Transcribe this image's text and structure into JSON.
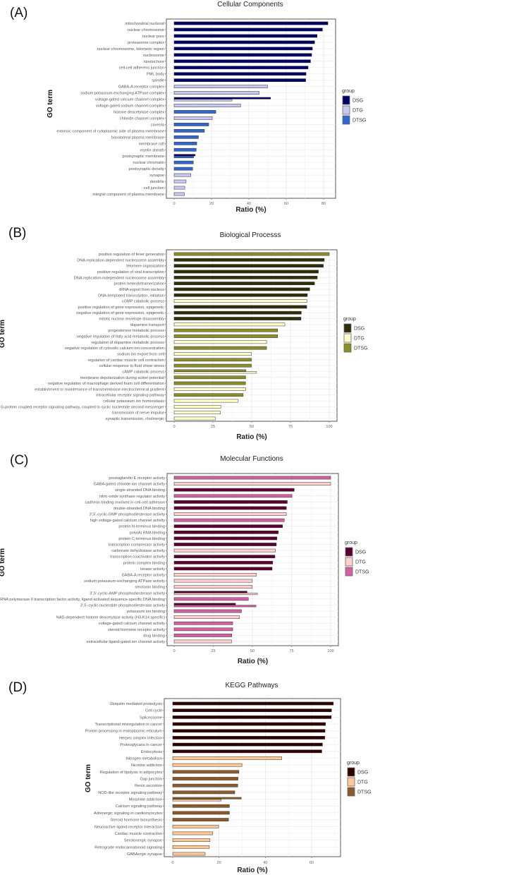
{
  "chart_data": [
    {
      "type": "bar",
      "orientation": "horizontal",
      "panel_label": "(A)",
      "title": "Cellular Components",
      "xlabel": "Ratio (%)",
      "ylabel": "GO term",
      "xlim": [
        0,
        85
      ],
      "xticks": [
        "0",
        "20",
        "40",
        "60",
        "80"
      ],
      "legend_title": "group",
      "legend_position": "right",
      "groups": [
        {
          "name": "DSG",
          "color": "#000066"
        },
        {
          "name": "DTG",
          "color": "#c8c8f0"
        },
        {
          "name": "DTSG",
          "color": "#3366cc"
        }
      ],
      "rows": [
        {
          "term": "mitochondrial nucleoid",
          "values": {
            "DSG": 82.3
          }
        },
        {
          "term": "nuclear chromosome",
          "values": {
            "DSG": 79.4
          }
        },
        {
          "term": "nuclear pore",
          "values": {
            "DSG": 76.5
          }
        },
        {
          "term": "proteasome complex",
          "values": {
            "DSG": 75.2
          }
        },
        {
          "term": "nuclear chromosome, telomeric region",
          "values": {
            "DSG": 74.0
          }
        },
        {
          "term": "nucleosome",
          "values": {
            "DSG": 73.6
          }
        },
        {
          "term": "kinetochore",
          "values": {
            "DSG": 73.0
          }
        },
        {
          "term": "cell-cell adherens junction",
          "values": {
            "DSG": 71.7
          }
        },
        {
          "term": "PML body",
          "values": {
            "DSG": 70.6
          }
        },
        {
          "term": "spindle",
          "values": {
            "DSG": 70.4
          }
        },
        {
          "term": "GABA-A receptor complex",
          "values": {
            "DTG": 50.0
          }
        },
        {
          "term": "sodium:potassium-exchanging ATPase complex",
          "values": {
            "DTG": 45.5
          }
        },
        {
          "term": "voltage-gated calcium channel complex",
          "values": {
            "DSG": 51.6,
            "DTG": 31.0
          }
        },
        {
          "term": "voltage-gated sodium channel complex",
          "values": {
            "DTG": 35.6
          }
        },
        {
          "term": "histone deacetylase complex",
          "values": {
            "DTSG": 22.3
          }
        },
        {
          "term": "chloride channel complex",
          "values": {
            "DTG": 20.4
          }
        },
        {
          "term": "caveola",
          "values": {
            "DTSG": 18.5
          }
        },
        {
          "term": "extrinsic component of cytoplasmic side of plasma membrane",
          "values": {
            "DTSG": 16.2
          }
        },
        {
          "term": "basolateral plasma membrane",
          "values": {
            "DTSG": 13.0
          }
        },
        {
          "term": "membrane raft",
          "values": {
            "DTSG": 12.1
          }
        },
        {
          "term": "myelin sheath",
          "values": {
            "DTSG": 11.8
          }
        },
        {
          "term": "postsynaptic membrane",
          "values": {
            "DSG": 11.3,
            "DTSG": 10.4
          }
        },
        {
          "term": "nuclear chromatin",
          "values": {
            "DTSG": 10.3
          }
        },
        {
          "term": "postsynaptic density",
          "values": {
            "DTSG": 9.9
          }
        },
        {
          "term": "synapse",
          "values": {
            "DTG": 8.9
          }
        },
        {
          "term": "dendrite",
          "values": {
            "DTG": 6.4
          }
        },
        {
          "term": "cell junction",
          "values": {
            "DTG": 5.7
          }
        },
        {
          "term": "integral component of plasma membrane",
          "values": {
            "DTG": 5.5
          }
        }
      ]
    },
    {
      "type": "bar",
      "orientation": "horizontal",
      "panel_label": "(B)",
      "title": "Biological Processs",
      "xlabel": "Ratio (%)",
      "ylabel": "GO term",
      "xlim": [
        0,
        105
      ],
      "xticks": [
        "0",
        "25",
        "50",
        "75",
        "100"
      ],
      "legend_title": "group",
      "legend_position": "right",
      "groups": [
        {
          "name": "DSG",
          "color": "#2e2e08"
        },
        {
          "name": "DTG",
          "color": "#ffffcc"
        },
        {
          "name": "DTSG",
          "color": "#8c8c2a"
        }
      ],
      "rows": [
        {
          "term": "positive regulation of fever generation",
          "values": {
            "DTSG": 100
          }
        },
        {
          "term": "DNA replication-dependent nucleosome assembly",
          "values": {
            "DSG": 96.8
          }
        },
        {
          "term": "telomere organization",
          "values": {
            "DSG": 96.2
          }
        },
        {
          "term": "positive regulation of viral transcription",
          "values": {
            "DSG": 93.0
          }
        },
        {
          "term": "DNA replication-independent nucleosome assembly",
          "values": {
            "DSG": 92.3
          }
        },
        {
          "term": "protein heterotetramerization",
          "values": {
            "DSG": 90.5
          }
        },
        {
          "term": "tRNA export from nucleus",
          "values": {
            "DSG": 87.4
          }
        },
        {
          "term": "DNA-templated transcription, initiation",
          "values": {
            "DSG": 85.9
          }
        },
        {
          "term": "cGMP catabolic process",
          "values": {
            "DTG": 85.6
          }
        },
        {
          "term": "positive regulation of gene expression, epigenetic",
          "values": {
            "DSG": 85.5
          }
        },
        {
          "term": "negative regulation of gene expression, epigenetic",
          "values": {
            "DSG": 82.0
          }
        },
        {
          "term": "mitotic nuclear envelope disassembly",
          "values": {
            "DSG": 81.8
          }
        },
        {
          "term": "dopamine transport",
          "values": {
            "DTG": 71.4
          }
        },
        {
          "term": "progesterone metabolic process",
          "values": {
            "DTSG": 66.7
          }
        },
        {
          "term": "negative regulation of fatty acid metabolic process",
          "values": {
            "DTSG": 66.7
          }
        },
        {
          "term": "regulation of dopamine metabolic process",
          "values": {
            "DTG": 59.6
          }
        },
        {
          "term": "negative regulation of cytosolic calcium ion concentration",
          "values": {
            "DTSG": 59.6
          }
        },
        {
          "term": "sodium ion export from cell",
          "values": {
            "DTG": 49.8
          }
        },
        {
          "term": "regulation of cardiac muscle cell contraction",
          "values": {
            "DTSG": 49.8
          }
        },
        {
          "term": "cellular response to fluid shear stress",
          "values": {
            "DTSG": 49.8
          }
        },
        {
          "term": "cAMP catabolic process",
          "values": {
            "DTSG": 46.3,
            "DTG": 53.1
          }
        },
        {
          "term": "membrane depolarization during action potential",
          "values": {
            "DTSG": 46.1
          }
        },
        {
          "term": "negative regulation of macrophage derived foam cell differentiation",
          "values": {
            "DTSG": 46.0
          }
        },
        {
          "term": "establishment or maintenance of transmembrane electrochemical gradient",
          "values": {
            "DTG": 46.1
          }
        },
        {
          "term": "intracellular receptor signaling pathway",
          "values": {
            "DTSG": 44.5
          }
        },
        {
          "term": "cellular potassium ion homeostasis",
          "values": {
            "DTG": 41.3
          }
        },
        {
          "term": "G-protein coupled receptor signaling pathway, coupled to cyclic nucleotide second messenger",
          "values": {
            "DTG": 30.1
          }
        },
        {
          "term": "transmission of nerve impulse",
          "values": {
            "DTG": 29.8
          }
        },
        {
          "term": "synaptic transmission, cholinergic",
          "values": {
            "DTG": 26.6
          }
        }
      ]
    },
    {
      "type": "bar",
      "orientation": "horizontal",
      "panel_label": "(C)",
      "title": "Molecular Functions",
      "xlabel": "Ratio (%)",
      "ylabel": "GO term",
      "xlim": [
        0,
        105
      ],
      "xticks": [
        "0",
        "25",
        "50",
        "75",
        "100"
      ],
      "legend_title": "group",
      "legend_position": "right",
      "groups": [
        {
          "name": "DSG",
          "color": "#5c0030"
        },
        {
          "name": "DTG",
          "color": "#ffd0d0"
        },
        {
          "name": "DTSG",
          "color": "#d060a0"
        }
      ],
      "rows": [
        {
          "term": "prostaglandin E receptor activity",
          "values": {
            "DTSG": 100
          }
        },
        {
          "term": "GABA-gated chloride ion channel activity",
          "values": {
            "DTG": 100
          }
        },
        {
          "term": "single-stranded DNA binding",
          "values": {
            "DSG": 76.7
          }
        },
        {
          "term": "nitric-oxide synthase regulator activity",
          "values": {
            "DTSG": 75.3
          }
        },
        {
          "term": "cadherin binding involved in cell-cell adhesion",
          "values": {
            "DSG": 72.3
          }
        },
        {
          "term": "double-stranded DNA binding",
          "values": {
            "DSG": 71.7
          }
        },
        {
          "term": "3',5'-cyclic-GMP phosphodiesterase activity",
          "values": {
            "DTG": 71.7
          }
        },
        {
          "term": "high voltage-gated calcium channel activity",
          "values": {
            "DTSG": 70.4
          }
        },
        {
          "term": "protein N-terminus binding",
          "values": {
            "DSG": 69.3
          }
        },
        {
          "term": "poly(A) RNA binding",
          "values": {
            "DSG": 66.6
          }
        },
        {
          "term": "protein C-terminus binding",
          "values": {
            "DSG": 65.7
          }
        },
        {
          "term": "transcription corepressor activity",
          "values": {
            "DSG": 65.3
          }
        },
        {
          "term": "carbonate dehydratase activity",
          "values": {
            "DTG": 64.7
          }
        },
        {
          "term": "transcription coactivator activity",
          "values": {
            "DSG": 64.4
          }
        },
        {
          "term": "protein complex binding",
          "values": {
            "DSG": 63.0
          }
        },
        {
          "term": "kinase activity",
          "values": {
            "DSG": 62.6
          }
        },
        {
          "term": "GABA-A receptor activity",
          "values": {
            "DTG": 52.6
          }
        },
        {
          "term": "sodium:potassium-exchanging ATPase activity",
          "values": {
            "DTG": 49.9
          }
        },
        {
          "term": "serotonin binding",
          "values": {
            "DTG": 49.9
          }
        },
        {
          "term": "3',5'-cyclic-AMP phosphodiesterase activity",
          "values": {
            "DSG": 46.6,
            "DTG": 53.2
          }
        },
        {
          "term": "RNA polymerase II transcription factor activity, ligand-activated sequence-specific DNA binding",
          "values": {
            "DTSG": 47.4
          }
        },
        {
          "term": "3',5'-cyclic-nucleotide phosphodiesterase activity",
          "values": {
            "DSG": 39.2,
            "DTSG": 52.3
          }
        },
        {
          "term": "potassium ion binding",
          "values": {
            "DTSG": 43.0
          }
        },
        {
          "term": "NAD-dependent histone deacetylase activity (H3-K14 specific)",
          "values": {
            "DTG": 41.8
          }
        },
        {
          "term": "voltage-gated calcium channel activity",
          "values": {
            "DTSG": 37.4
          }
        },
        {
          "term": "steroid hormone receptor activity",
          "values": {
            "DTSG": 37.4
          }
        },
        {
          "term": "drug binding",
          "values": {
            "DTSG": 36.8
          }
        },
        {
          "term": "extracellular ligand-gated ion channel activity",
          "values": {
            "DTG": 36.7
          }
        }
      ]
    },
    {
      "type": "bar",
      "orientation": "horizontal",
      "panel_label": "(D)",
      "title": "KEGG Pathways",
      "xlabel": "Ratio (%)",
      "ylabel": "GO term",
      "xlim": [
        0,
        72
      ],
      "xticks": [
        "0",
        "20",
        "40",
        "60"
      ],
      "legend_title": "group",
      "legend_position": "right",
      "groups": [
        {
          "name": "DSG",
          "color": "#2e0000"
        },
        {
          "name": "DTG",
          "color": "#ffc896"
        },
        {
          "name": "DTSG",
          "color": "#8c5a2a"
        }
      ],
      "rows": [
        {
          "term": "Ubiquitin mediated proteolysis",
          "values": {
            "DSG": 69.4
          }
        },
        {
          "term": "Cell cycle",
          "values": {
            "DSG": 68.6
          }
        },
        {
          "term": "Spliceosome",
          "values": {
            "DSG": 68.5
          }
        },
        {
          "term": "Transcriptional misregulation in cancer",
          "values": {
            "DSG": 66.0
          }
        },
        {
          "term": "Protein processing in endoplasmic reticulum",
          "values": {
            "DSG": 65.8
          }
        },
        {
          "term": "Herpes simplex infection",
          "values": {
            "DSG": 65.7
          }
        },
        {
          "term": "Proteoglycans in cancer",
          "values": {
            "DSG": 64.7
          }
        },
        {
          "term": "Endocytosis",
          "values": {
            "DSG": 64.4
          }
        },
        {
          "term": "Nitrogen metabolism",
          "values": {
            "DTG": 47.1
          }
        },
        {
          "term": "Nicotine addiction",
          "values": {
            "DTG": 29.9
          }
        },
        {
          "term": "Regulation of lipolysis in adipocytes",
          "values": {
            "DTSG": 28.6
          }
        },
        {
          "term": "Gap junction",
          "values": {
            "DTSG": 28.2
          }
        },
        {
          "term": "Renin secretion",
          "values": {
            "DTSG": 28.1
          }
        },
        {
          "term": "NOD-like receptor signaling pathway",
          "values": {
            "DTSG": 26.8
          }
        },
        {
          "term": "Morphine addiction",
          "values": {
            "DTSG": 29.6,
            "DTG": 20.9
          }
        },
        {
          "term": "Calcium signaling pathway",
          "values": {
            "DTSG": 24.5
          }
        },
        {
          "term": "Adrenergic signaling in cardiomyocytes",
          "values": {
            "DTSG": 24.5
          }
        },
        {
          "term": "Steroid hormone biosynthesis",
          "values": {
            "DTSG": 24.1
          }
        },
        {
          "term": "Neuroactive ligand-receptor interaction",
          "values": {
            "DTG": 19.8
          }
        },
        {
          "term": "Cardiac muscle contraction",
          "values": {
            "DTG": 17.3
          }
        },
        {
          "term": "Serotonergic synapse",
          "values": {
            "DTG": 16.1
          }
        },
        {
          "term": "Retrograde endocannabinoid signaling",
          "values": {
            "DTG": 15.8
          }
        },
        {
          "term": "GABAergic synapse",
          "values": {
            "DTG": 14.0
          }
        }
      ]
    }
  ]
}
